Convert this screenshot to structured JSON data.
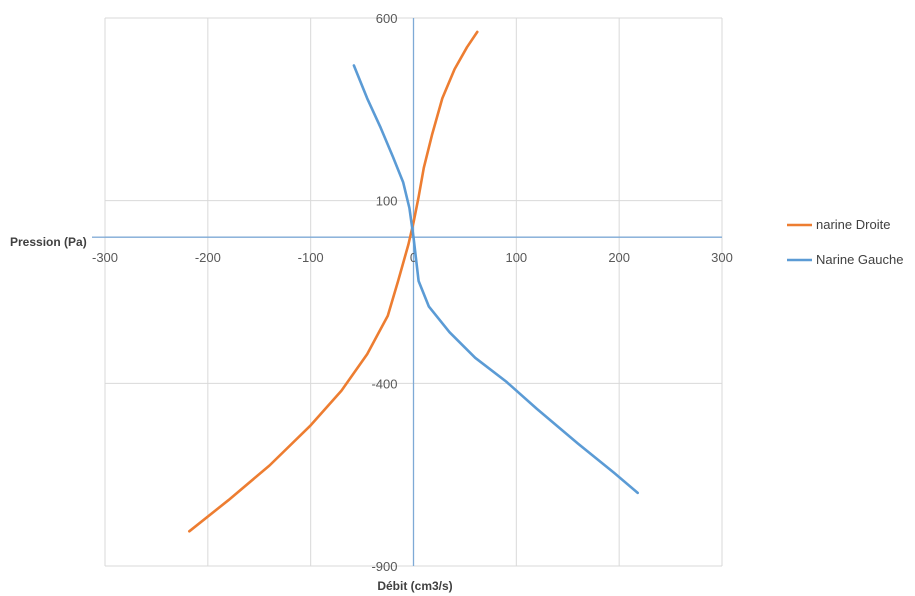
{
  "chart_data": {
    "type": "scatter",
    "xlabel": "Débit (cm3/s)",
    "ylabel": "Pression (Pa)",
    "xlim": [
      -300,
      300
    ],
    "ylim": [
      -900,
      600
    ],
    "x_ticks": [
      -300,
      -200,
      -100,
      0,
      100,
      200,
      300
    ],
    "x_tick_labels": [
      "-300",
      "-200",
      "-100",
      "0",
      "100",
      "200",
      "300"
    ],
    "y_ticks": [
      600,
      100,
      -400,
      -900
    ],
    "y_tick_labels": [
      "600",
      "100",
      "-400",
      "-900"
    ],
    "grid": true,
    "legend_position": "right",
    "series": [
      {
        "name": "narine Droite",
        "color": "#ED7D31",
        "points": [
          [
            -218,
            -805
          ],
          [
            -180,
            -720
          ],
          [
            -140,
            -625
          ],
          [
            -100,
            -515
          ],
          [
            -70,
            -420
          ],
          [
            -45,
            -320
          ],
          [
            -25,
            -215
          ],
          [
            -15,
            -120
          ],
          [
            -5,
            -20
          ],
          [
            0,
            40
          ],
          [
            5,
            110
          ],
          [
            10,
            190
          ],
          [
            18,
            280
          ],
          [
            28,
            380
          ],
          [
            40,
            460
          ],
          [
            52,
            520
          ],
          [
            62,
            562
          ]
        ]
      },
      {
        "name": "Narine Gauche",
        "color": "#5B9BD5",
        "points": [
          [
            -58,
            470
          ],
          [
            -45,
            380
          ],
          [
            -32,
            300
          ],
          [
            -20,
            220
          ],
          [
            -10,
            150
          ],
          [
            -4,
            80
          ],
          [
            0,
            0
          ],
          [
            5,
            -120
          ],
          [
            15,
            -190
          ],
          [
            35,
            -260
          ],
          [
            60,
            -330
          ],
          [
            90,
            -395
          ],
          [
            120,
            -470
          ],
          [
            160,
            -565
          ],
          [
            195,
            -645
          ],
          [
            218,
            -700
          ]
        ]
      }
    ]
  }
}
